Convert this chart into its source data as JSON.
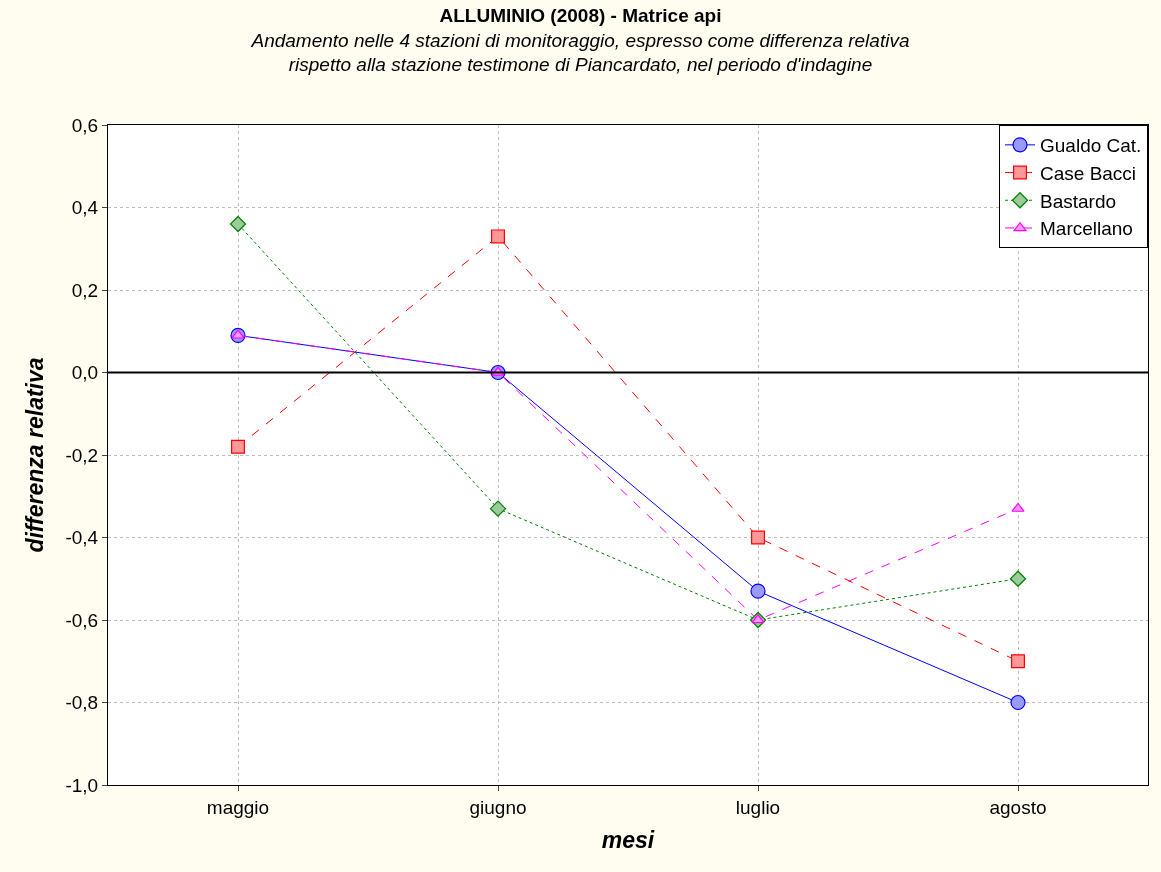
{
  "chart_data": {
    "type": "line",
    "title": "ALLUMINIO (2008) - Matrice api",
    "subtitle": "Andamento nelle 4 stazioni di monitoraggio, espresso come differenza relativa\nrispetto alla stazione testimone di Piancardato, nel periodo d'indagine",
    "xlabel": "mesi",
    "ylabel": "differenza relativa",
    "categories": [
      "maggio",
      "giugno",
      "luglio",
      "agosto"
    ],
    "series": [
      {
        "name": "Gualdo Cat.",
        "color": "#0000ff",
        "marker": "circle",
        "line_style": "solid",
        "values": [
          0.09,
          0.0,
          -0.53,
          -0.8
        ]
      },
      {
        "name": "Case Bacci",
        "color": "#ff0000",
        "marker": "square",
        "line_style": "dashed",
        "values": [
          -0.18,
          0.33,
          -0.4,
          -0.7
        ]
      },
      {
        "name": "Bastardo",
        "color": "#008000",
        "marker": "diamond",
        "line_style": "dotted",
        "values": [
          0.36,
          -0.33,
          -0.6,
          -0.5
        ]
      },
      {
        "name": "Marcellano",
        "color": "#ff00ff",
        "marker": "triangle",
        "line_style": "dashed",
        "values": [
          0.09,
          0.0,
          -0.6,
          -0.33
        ]
      }
    ],
    "ylim": [
      -1.0,
      0.6
    ],
    "yticks": [
      {
        "value": -1.0,
        "label": "-1,0"
      },
      {
        "value": -0.8,
        "label": "-0,8"
      },
      {
        "value": -0.6,
        "label": "-0,6"
      },
      {
        "value": -0.4,
        "label": "-0,4"
      },
      {
        "value": -0.2,
        "label": "-0,2"
      },
      {
        "value": 0.0,
        "label": "0,0"
      },
      {
        "value": 0.2,
        "label": "0,2"
      },
      {
        "value": 0.4,
        "label": "0,4"
      },
      {
        "value": 0.6,
        "label": "0,6"
      }
    ],
    "ref_lines": [
      {
        "axis": "y",
        "value": 0.0,
        "color": "#000000",
        "line_style": "solid"
      }
    ],
    "grid": true,
    "legend": "top right"
  }
}
